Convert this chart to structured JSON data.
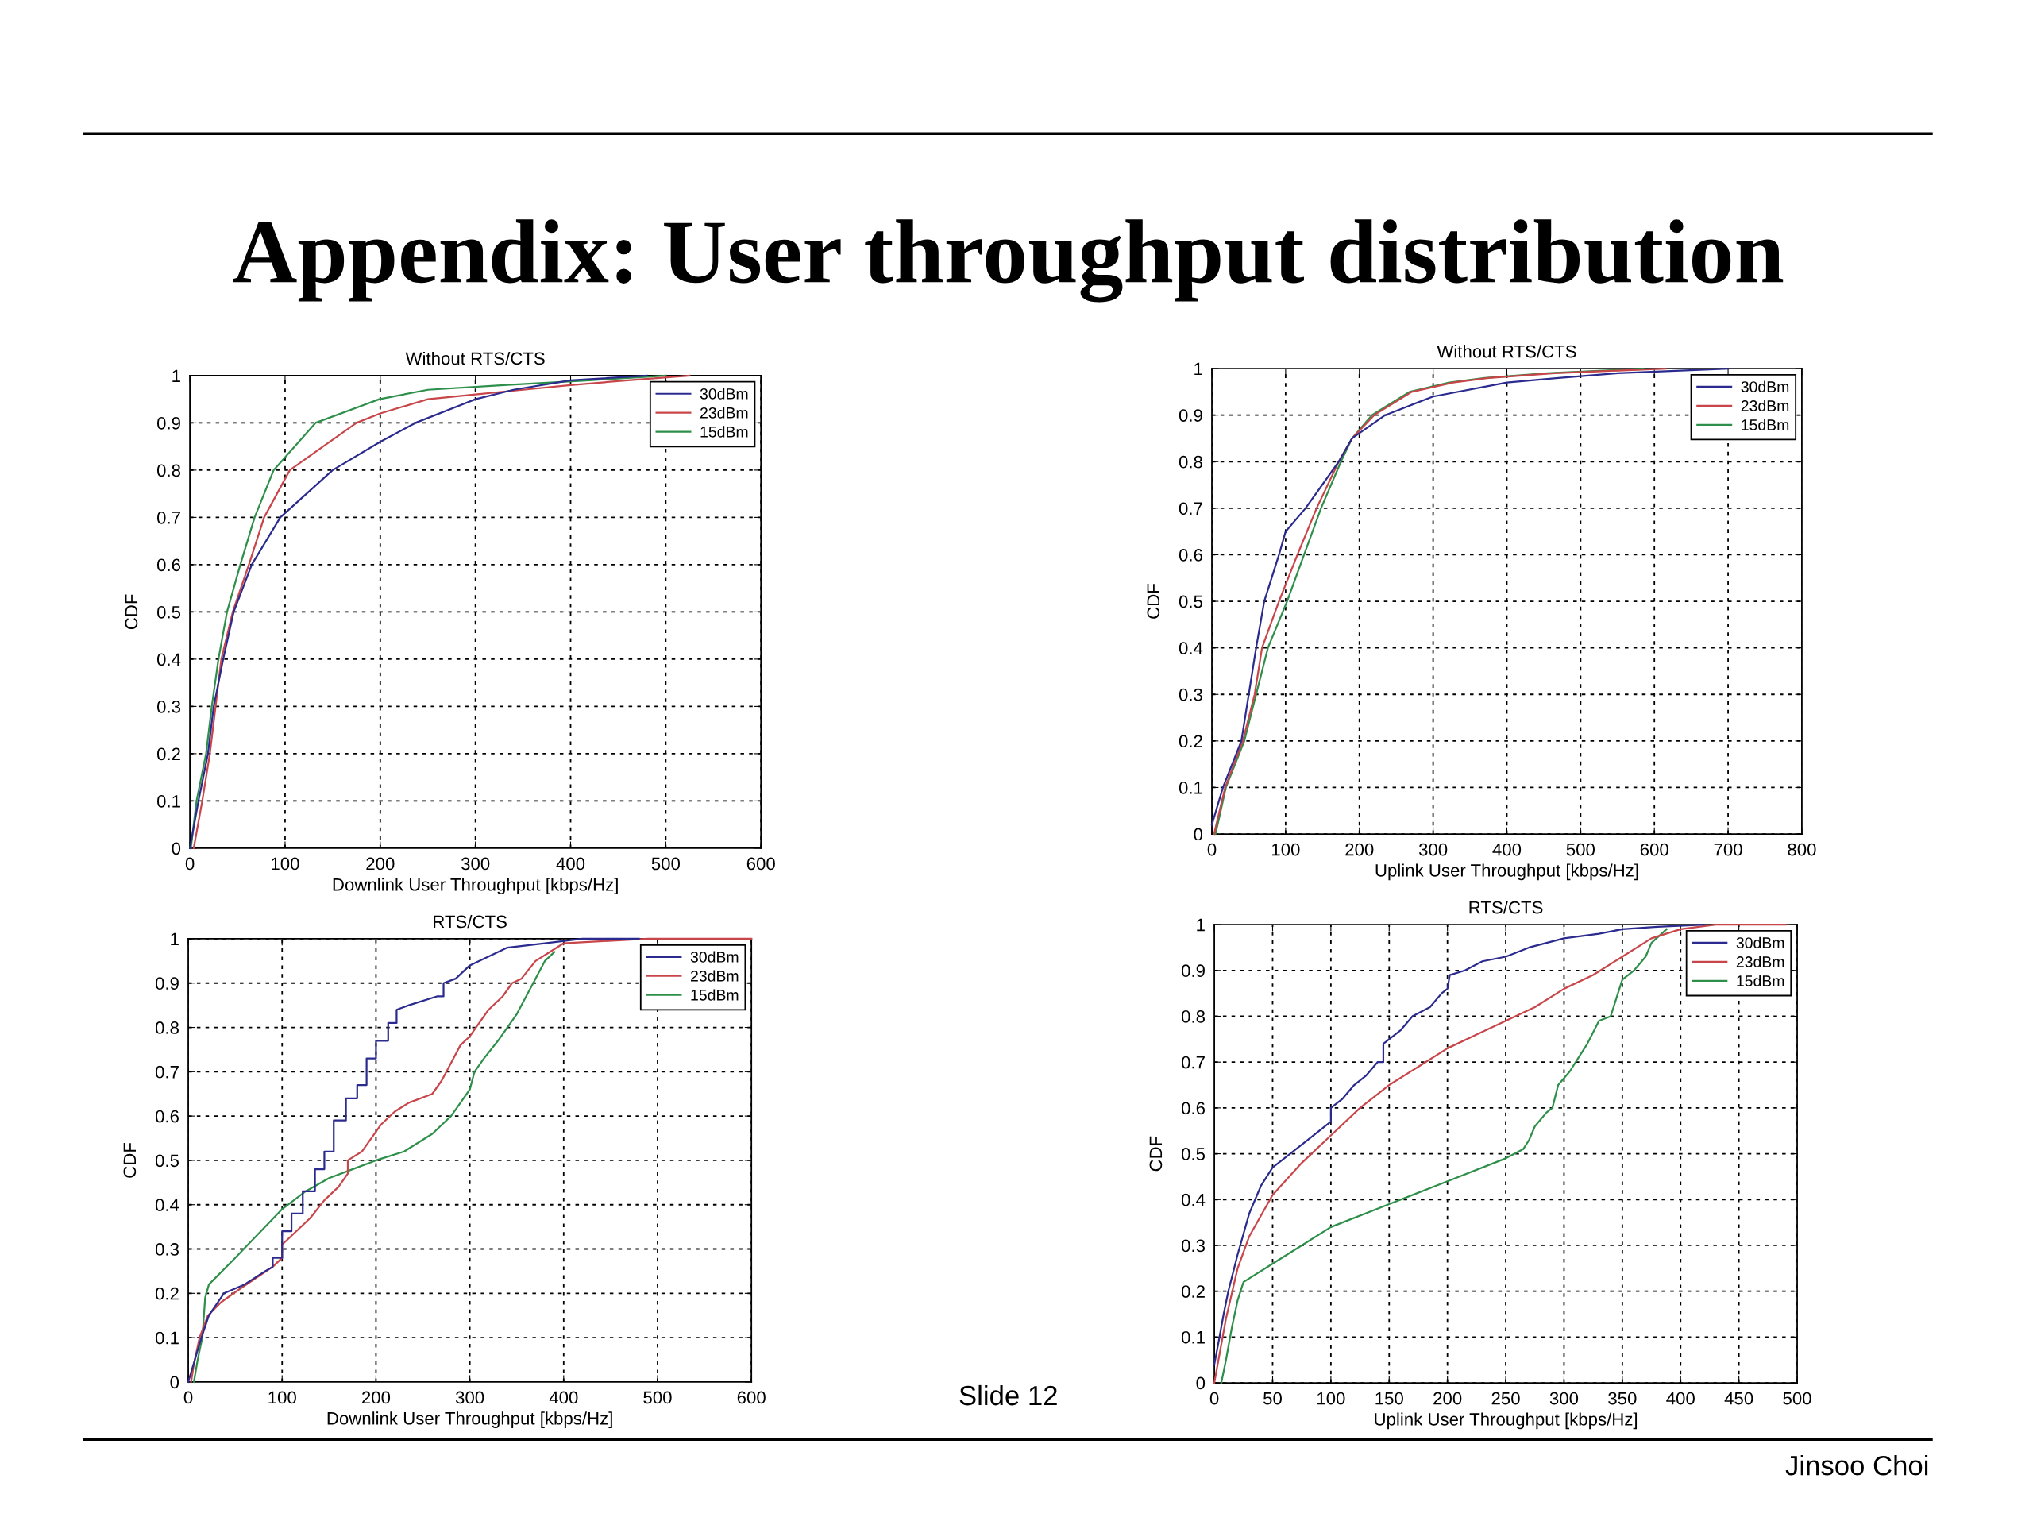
{
  "chart_data": [
    {
      "type": "other",
      "title": "Appendix: User throughput distribution",
      "annotations": [
        "Slide 12",
        "Jinsoo Choi"
      ]
    },
    {
      "type": "line",
      "title": "Without RTS/CTS",
      "xlabel": "Downlink User Throughput [kbps/Hz]",
      "ylabel": "CDF",
      "xlim": [
        0,
        600
      ],
      "ylim": [
        0,
        1
      ],
      "xticks": [
        0,
        100,
        200,
        300,
        400,
        500,
        600
      ],
      "yticks": [
        0,
        0.1,
        0.2,
        0.3,
        0.4,
        0.5,
        0.6,
        0.7,
        0.8,
        0.9,
        1
      ],
      "grid": true,
      "legend": "top right",
      "series": [
        {
          "name": "30dBm",
          "color": "#2b2b8f",
          "x": [
            0,
            9,
            19,
            25,
            35,
            46,
            65,
            95,
            150,
            200,
            237,
            300,
            340,
            400,
            480
          ],
          "values": [
            0,
            0.1,
            0.2,
            0.3,
            0.4,
            0.5,
            0.6,
            0.7,
            0.8,
            0.86,
            0.9,
            0.95,
            0.97,
            0.99,
            1.0
          ]
        },
        {
          "name": "23dBm",
          "color": "#c8464a",
          "x": [
            4,
            13,
            21,
            27,
            33,
            45,
            62,
            78,
            105,
            175,
            200,
            250,
            300,
            350,
            400,
            460,
            525
          ],
          "values": [
            0,
            0.1,
            0.2,
            0.3,
            0.4,
            0.5,
            0.6,
            0.7,
            0.8,
            0.9,
            0.92,
            0.95,
            0.96,
            0.97,
            0.98,
            0.99,
            1.0
          ]
        },
        {
          "name": "15dBm",
          "color": "#2e8f4a",
          "x": [
            1,
            7,
            17,
            23,
            30,
            39,
            53,
            68,
            88,
            132,
            199,
            250,
            330,
            420,
            500
          ],
          "values": [
            0,
            0.1,
            0.2,
            0.3,
            0.4,
            0.5,
            0.6,
            0.7,
            0.8,
            0.9,
            0.95,
            0.97,
            0.98,
            0.99,
            1.0
          ]
        }
      ]
    },
    {
      "type": "line",
      "title": "Without RTS/CTS",
      "xlabel": "Uplink User Throughput [kbps/Hz]",
      "ylabel": "CDF",
      "xlim": [
        0,
        800
      ],
      "ylim": [
        0,
        1
      ],
      "xticks": [
        0,
        100,
        200,
        300,
        400,
        500,
        600,
        700,
        800
      ],
      "yticks": [
        0,
        0.1,
        0.2,
        0.3,
        0.4,
        0.5,
        0.6,
        0.7,
        0.8,
        0.9,
        1
      ],
      "grid": true,
      "legend": "top right",
      "series": [
        {
          "name": "30dBm",
          "color": "#2b2b8f",
          "x": [
            0,
            15,
            40,
            50,
            60,
            71,
            91,
            100,
            127,
            172,
            190,
            235,
            300,
            400,
            470,
            550,
            700
          ],
          "values": [
            0.02,
            0.1,
            0.2,
            0.3,
            0.4,
            0.5,
            0.6,
            0.65,
            0.7,
            0.8,
            0.85,
            0.9,
            0.94,
            0.97,
            0.98,
            0.99,
            1.0
          ]
        },
        {
          "name": "23dBm",
          "color": "#c8464a",
          "x": [
            3,
            18,
            42,
            58,
            68,
            91,
            116,
            142,
            172,
            190,
            220,
            271,
            327,
            375,
            465,
            615
          ],
          "values": [
            0,
            0.1,
            0.2,
            0.3,
            0.4,
            0.5,
            0.6,
            0.7,
            0.8,
            0.85,
            0.9,
            0.95,
            0.97,
            0.98,
            0.99,
            1.0
          ]
        },
        {
          "name": "15dBm",
          "color": "#2e8f4a",
          "x": [
            5,
            19,
            44,
            60,
            76,
            102,
            125,
            148,
            175,
            190,
            217,
            268,
            322,
            370,
            455,
            585
          ],
          "values": [
            0,
            0.1,
            0.2,
            0.3,
            0.4,
            0.5,
            0.6,
            0.7,
            0.8,
            0.85,
            0.9,
            0.95,
            0.97,
            0.98,
            0.99,
            1.0
          ]
        }
      ]
    },
    {
      "type": "line",
      "title": "RTS/CTS",
      "xlabel": "Downlink User Throughput [kbps/Hz]",
      "ylabel": "CDF",
      "xlim": [
        0,
        600
      ],
      "ylim": [
        0,
        1
      ],
      "xticks": [
        0,
        100,
        200,
        300,
        400,
        500,
        600
      ],
      "yticks": [
        0,
        0.1,
        0.2,
        0.3,
        0.4,
        0.5,
        0.6,
        0.7,
        0.8,
        0.9,
        1
      ],
      "grid": true,
      "legend": "top right",
      "series": [
        {
          "name": "30dBm",
          "color": "#2b2b8f",
          "x": [
            0,
            7,
            14,
            22,
            38,
            60,
            82,
            90,
            90,
            100,
            100,
            110,
            110,
            122,
            122,
            135,
            135,
            145,
            145,
            155,
            155,
            168,
            168,
            180,
            180,
            190,
            190,
            200,
            200,
            213,
            213,
            222,
            222,
            235,
            265,
            272,
            272,
            285,
            300,
            320,
            340,
            380,
            420,
            480
          ],
          "values": [
            0,
            0.05,
            0.1,
            0.15,
            0.2,
            0.22,
            0.25,
            0.26,
            0.28,
            0.28,
            0.34,
            0.34,
            0.38,
            0.38,
            0.43,
            0.43,
            0.48,
            0.48,
            0.52,
            0.52,
            0.59,
            0.59,
            0.64,
            0.64,
            0.67,
            0.67,
            0.73,
            0.73,
            0.77,
            0.77,
            0.81,
            0.81,
            0.84,
            0.85,
            0.87,
            0.87,
            0.9,
            0.91,
            0.94,
            0.96,
            0.98,
            0.99,
            1.0,
            1.0
          ]
        },
        {
          "name": "23dBm",
          "color": "#c8464a",
          "x": [
            3,
            6,
            12,
            21,
            35,
            55,
            90,
            100,
            100,
            115,
            130,
            145,
            160,
            170,
            170,
            185,
            195,
            205,
            220,
            235,
            260,
            270,
            280,
            290,
            300,
            310,
            320,
            335,
            345,
            355,
            370,
            385,
            400,
            490,
            600
          ],
          "values": [
            0,
            0.04,
            0.1,
            0.15,
            0.18,
            0.21,
            0.26,
            0.28,
            0.31,
            0.34,
            0.37,
            0.41,
            0.44,
            0.47,
            0.5,
            0.52,
            0.55,
            0.58,
            0.61,
            0.63,
            0.65,
            0.68,
            0.72,
            0.76,
            0.78,
            0.81,
            0.84,
            0.87,
            0.9,
            0.91,
            0.95,
            0.97,
            0.99,
            1.0,
            1.0
          ]
        },
        {
          "name": "15dBm",
          "color": "#2e8f4a",
          "x": [
            6,
            10,
            15,
            18,
            22,
            50,
            100,
            125,
            150,
            175,
            200,
            230,
            260,
            270,
            280,
            290,
            300,
            305,
            315,
            330,
            340,
            350,
            360,
            370,
            380,
            390
          ],
          "values": [
            0,
            0.05,
            0.1,
            0.19,
            0.22,
            0.28,
            0.39,
            0.43,
            0.46,
            0.48,
            0.5,
            0.52,
            0.56,
            0.58,
            0.6,
            0.63,
            0.66,
            0.7,
            0.73,
            0.77,
            0.8,
            0.83,
            0.87,
            0.91,
            0.95,
            0.97
          ]
        }
      ]
    },
    {
      "type": "line",
      "title": "RTS/CTS",
      "xlabel": "Uplink User Throughput [kbps/Hz]",
      "ylabel": "CDF",
      "xlim": [
        0,
        500
      ],
      "ylim": [
        0,
        1
      ],
      "xticks": [
        0,
        50,
        100,
        150,
        200,
        250,
        300,
        350,
        400,
        450,
        500
      ],
      "yticks": [
        0,
        0.1,
        0.2,
        0.3,
        0.4,
        0.5,
        0.6,
        0.7,
        0.8,
        0.9,
        1
      ],
      "grid": true,
      "legend": "top right",
      "series": [
        {
          "name": "30dBm",
          "color": "#2b2b8f",
          "x": [
            0,
            3,
            8,
            12,
            20,
            30,
            40,
            50,
            65,
            80,
            95,
            100,
            100,
            110,
            120,
            130,
            140,
            145,
            145,
            160,
            170,
            185,
            195,
            200,
            202,
            215,
            230,
            250,
            270,
            300,
            330,
            350,
            380,
            420
          ],
          "values": [
            0.04,
            0.08,
            0.15,
            0.2,
            0.28,
            0.37,
            0.43,
            0.47,
            0.5,
            0.53,
            0.56,
            0.57,
            0.6,
            0.62,
            0.65,
            0.67,
            0.7,
            0.7,
            0.74,
            0.77,
            0.8,
            0.82,
            0.85,
            0.86,
            0.89,
            0.9,
            0.92,
            0.93,
            0.95,
            0.97,
            0.98,
            0.99,
            0.995,
            1.0
          ]
        },
        {
          "name": "23dBm",
          "color": "#c8464a",
          "x": [
            0,
            5,
            10,
            20,
            30,
            50,
            75,
            100,
            125,
            150,
            175,
            200,
            225,
            250,
            275,
            300,
            325,
            350,
            375,
            400,
            430,
            490
          ],
          "values": [
            0,
            0.07,
            0.14,
            0.25,
            0.32,
            0.41,
            0.48,
            0.54,
            0.6,
            0.65,
            0.69,
            0.73,
            0.76,
            0.79,
            0.82,
            0.86,
            0.89,
            0.93,
            0.97,
            0.99,
            1.0,
            1.0
          ]
        },
        {
          "name": "15dBm",
          "color": "#2e8f4a",
          "x": [
            6,
            10,
            15,
            20,
            25,
            50,
            75,
            100,
            150,
            200,
            250,
            265,
            270,
            275,
            285,
            290,
            295,
            305,
            315,
            320,
            330,
            340,
            345,
            350,
            360,
            370,
            375,
            388
          ],
          "values": [
            0,
            0.05,
            0.12,
            0.18,
            0.22,
            0.26,
            0.3,
            0.34,
            0.39,
            0.44,
            0.49,
            0.51,
            0.53,
            0.56,
            0.59,
            0.6,
            0.65,
            0.68,
            0.72,
            0.74,
            0.79,
            0.8,
            0.84,
            0.88,
            0.9,
            0.93,
            0.96,
            0.99
          ]
        }
      ]
    }
  ]
}
